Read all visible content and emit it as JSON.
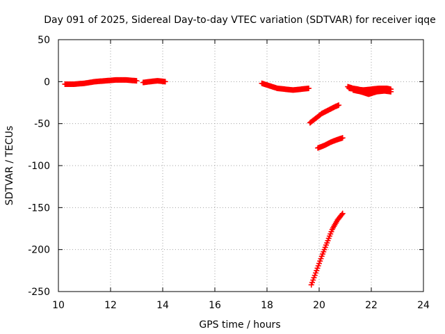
{
  "chart_data": {
    "type": "scatter",
    "title": "Day 091 of 2025, Sidereal Day-to-day VTEC variation (SDTVAR) for receiver iqqe",
    "xlabel": "GPS time / hours",
    "ylabel": "SDTVAR / TECUs",
    "xlim": [
      10,
      24
    ],
    "ylim": [
      -250,
      50
    ],
    "xticks": [
      10,
      12,
      14,
      16,
      18,
      20,
      22,
      24
    ],
    "yticks": [
      50,
      0,
      -50,
      -100,
      -150,
      -200,
      -250
    ],
    "grid": true,
    "marker": "plus",
    "series": [
      {
        "color": "#ff0000",
        "segments": [
          [
            [
              10.25,
              -3
            ],
            [
              10.6,
              -3
            ],
            [
              11.0,
              -2
            ],
            [
              11.4,
              0
            ],
            [
              11.8,
              1
            ],
            [
              12.2,
              2
            ],
            [
              12.6,
              2
            ],
            [
              13.0,
              1
            ]
          ],
          [
            [
              13.25,
              -1
            ],
            [
              13.5,
              0
            ],
            [
              13.8,
              1
            ],
            [
              14.1,
              0
            ]
          ],
          [
            [
              17.8,
              -2
            ],
            [
              18.1,
              -5
            ],
            [
              18.4,
              -8
            ],
            [
              18.7,
              -9
            ],
            [
              19.0,
              -10
            ],
            [
              19.3,
              -9
            ],
            [
              19.6,
              -8
            ]
          ],
          [
            [
              19.65,
              -49
            ],
            [
              19.9,
              -43
            ],
            [
              20.1,
              -38
            ],
            [
              20.35,
              -34
            ],
            [
              20.6,
              -30
            ],
            [
              20.75,
              -28
            ]
          ],
          [
            [
              19.95,
              -79
            ],
            [
              20.2,
              -76
            ],
            [
              20.45,
              -72
            ],
            [
              20.7,
              -69
            ],
            [
              20.9,
              -67
            ]
          ],
          [
            [
              19.7,
              -242
            ],
            [
              19.9,
              -225
            ],
            [
              20.1,
              -208
            ],
            [
              20.3,
              -192
            ],
            [
              20.5,
              -176
            ],
            [
              20.7,
              -165
            ],
            [
              20.9,
              -157
            ]
          ],
          [
            [
              21.1,
              -6
            ],
            [
              21.3,
              -8
            ],
            [
              21.5,
              -9
            ],
            [
              21.7,
              -11
            ],
            [
              21.9,
              -13
            ],
            [
              22.1,
              -11
            ],
            [
              22.3,
              -10
            ],
            [
              22.5,
              -9
            ],
            [
              22.7,
              -9
            ]
          ],
          [
            [
              21.15,
              -8
            ],
            [
              21.4,
              -9
            ],
            [
              21.7,
              -10
            ],
            [
              22.0,
              -9
            ],
            [
              22.3,
              -8
            ],
            [
              22.6,
              -8
            ],
            [
              22.75,
              -9
            ]
          ],
          [
            [
              21.3,
              -10
            ],
            [
              21.6,
              -12
            ],
            [
              21.9,
              -15
            ],
            [
              22.2,
              -12
            ],
            [
              22.5,
              -11
            ],
            [
              22.75,
              -12
            ]
          ]
        ]
      }
    ]
  }
}
